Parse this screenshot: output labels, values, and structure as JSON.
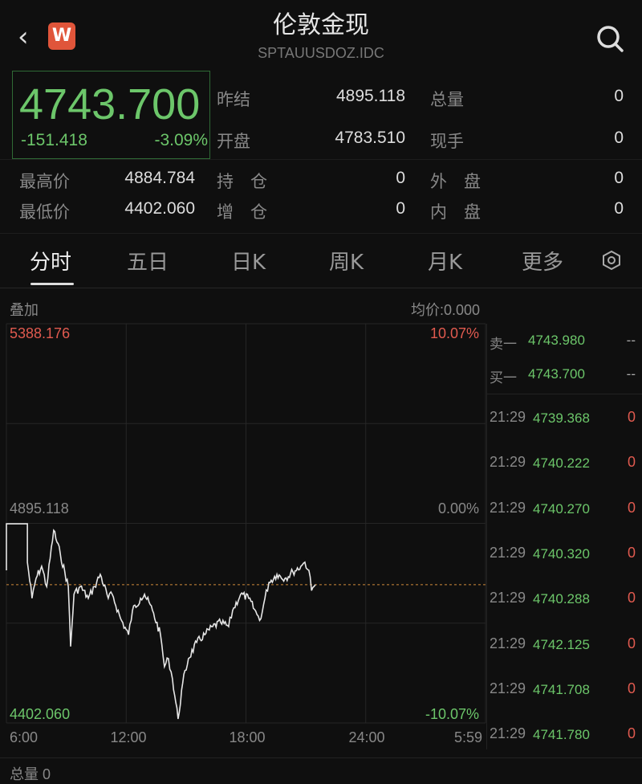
{
  "header": {
    "title": "伦敦金现",
    "code": "SPTAUUSDOZ.IDC",
    "logo": "W",
    "back_icon": "chevron-left-icon",
    "search_icon": "search-icon"
  },
  "quote": {
    "price": "4743.700",
    "change": "-151.418",
    "change_pct": "-3.09%",
    "color_down": "#6cc66a",
    "color_up": "#e05a4f"
  },
  "stats": [
    {
      "label": "昨结",
      "value": "4895.118"
    },
    {
      "label": "总量",
      "value": "0"
    },
    {
      "label": "开盘",
      "value": "4783.510"
    },
    {
      "label": "现手",
      "value": "0"
    },
    {
      "label": "最高价",
      "value": "4884.784"
    },
    {
      "label": "持　仓",
      "value": "0"
    },
    {
      "label": "外　盘",
      "value": "0"
    },
    {
      "label": "最低价",
      "value": "4402.060"
    },
    {
      "label": "增　仓",
      "value": "0"
    },
    {
      "label": "内　盘",
      "value": "0"
    }
  ],
  "tabs": [
    {
      "label": "分时",
      "active": true
    },
    {
      "label": "五日"
    },
    {
      "label": "日K"
    },
    {
      "label": "周K"
    },
    {
      "label": "月K"
    },
    {
      "label": "更多"
    }
  ],
  "settings_icon": "hexagon-settings-icon",
  "chart_toolbar": {
    "overlay": "叠加",
    "avg_price": "均价:0.000"
  },
  "chart_data": {
    "type": "line",
    "y_labels": {
      "top": "5388.176",
      "mid": "4895.118",
      "bottom": "4402.060"
    },
    "pct_labels": {
      "top": "10.07%",
      "mid": "0.00%",
      "bottom": "-10.07%"
    },
    "ylim": [
      4402.06,
      5388.176
    ],
    "reference": 4895.118,
    "current": 4743.7,
    "x_ticks": [
      "6:00",
      "12:00",
      "18:00",
      "24:00",
      "5:59"
    ],
    "x_range": [
      "6:00",
      "5:59"
    ],
    "grid": true,
    "series": [
      {
        "points": [
          [
            "6:00",
            4779
          ],
          [
            "6:00",
            4894
          ],
          [
            "7:03",
            4894
          ],
          [
            "7:03",
            4799
          ],
          [
            "7:17",
            4710
          ],
          [
            "7:29",
            4759
          ],
          [
            "7:46",
            4789
          ],
          [
            "8:01",
            4739
          ],
          [
            "8:22",
            4878
          ],
          [
            "8:42",
            4819
          ],
          [
            "9:06",
            4739
          ],
          [
            "9:13",
            4591
          ],
          [
            "9:23",
            4720
          ],
          [
            "9:42",
            4739
          ],
          [
            "10:06",
            4710
          ],
          [
            "10:25",
            4739
          ],
          [
            "10:42",
            4769
          ],
          [
            "11:06",
            4710
          ],
          [
            "11:18",
            4720
          ],
          [
            "11:43",
            4660
          ],
          [
            "12:07",
            4620
          ],
          [
            "12:19",
            4680
          ],
          [
            "12:43",
            4710
          ],
          [
            "12:55",
            4720
          ],
          [
            "13:19",
            4680
          ],
          [
            "13:43",
            4620
          ],
          [
            "13:55",
            4541
          ],
          [
            "14:07",
            4561
          ],
          [
            "14:19",
            4511
          ],
          [
            "14:36",
            4412
          ],
          [
            "14:50",
            4501
          ],
          [
            "15:07",
            4561
          ],
          [
            "15:32",
            4601
          ],
          [
            "15:56",
            4620
          ],
          [
            "16:20",
            4640
          ],
          [
            "16:44",
            4650
          ],
          [
            "17:08",
            4640
          ],
          [
            "17:20",
            4680
          ],
          [
            "17:44",
            4720
          ],
          [
            "18:08",
            4710
          ],
          [
            "18:33",
            4670
          ],
          [
            "18:45",
            4660
          ],
          [
            "18:57",
            4710
          ],
          [
            "19:09",
            4749
          ],
          [
            "19:33",
            4769
          ],
          [
            "19:57",
            4759
          ],
          [
            "20:21",
            4775
          ],
          [
            "20:45",
            4789
          ],
          [
            "20:57",
            4799
          ],
          [
            "21:09",
            4779
          ],
          [
            "21:17",
            4729
          ],
          [
            "21:29",
            4744
          ]
        ]
      }
    ]
  },
  "order_book": [
    {
      "label": "卖一",
      "price": "4743.980",
      "vol": "--"
    },
    {
      "label": "买一",
      "price": "4743.700",
      "vol": "--"
    }
  ],
  "ticks": [
    {
      "time": "21:29",
      "price": "4739.368",
      "vol": "0"
    },
    {
      "time": "21:29",
      "price": "4740.222",
      "vol": "0"
    },
    {
      "time": "21:29",
      "price": "4740.270",
      "vol": "0"
    },
    {
      "time": "21:29",
      "price": "4740.320",
      "vol": "0"
    },
    {
      "time": "21:29",
      "price": "4740.288",
      "vol": "0"
    },
    {
      "time": "21:29",
      "price": "4742.125",
      "vol": "0"
    },
    {
      "time": "21:29",
      "price": "4741.708",
      "vol": "0"
    },
    {
      "time": "21:29",
      "price": "4741.780",
      "vol": "0"
    }
  ],
  "footer": {
    "volume": "总量 0"
  }
}
